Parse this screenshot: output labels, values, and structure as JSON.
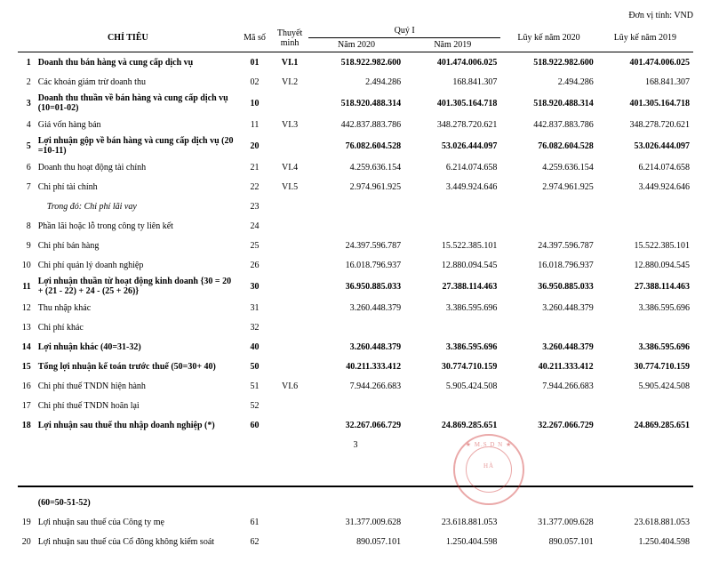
{
  "unit_text": "Đơn vị tính: VND",
  "page_number": "3",
  "headers": {
    "chi_tieu": "CHỈ TIÊU",
    "ma_so": "Mã số",
    "thuyet_minh": "Thuyết minh",
    "quy": "Quý I",
    "nam2020": "Năm 2020",
    "nam2019": "Năm 2019",
    "luyke2020": "Lũy kế năm 2020",
    "luyke2019": "Lũy kế năm 2019"
  },
  "stamp": {
    "line1": "★ M.S D N ★",
    "line2": "HÀ"
  },
  "rows": [
    {
      "idx": "1",
      "name": "Doanh thu bán hàng và cung cấp dịch vụ",
      "ms": "01",
      "tm": "VI.1",
      "q2020": "518.922.982.600",
      "q2019": "401.474.006.025",
      "l2020": "518.922.982.600",
      "l2019": "401.474.006.025",
      "bold": true
    },
    {
      "idx": "2",
      "name": "Các khoản giảm trừ doanh thu",
      "ms": "02",
      "tm": "VI.2",
      "q2020": "2.494.286",
      "q2019": "168.841.307",
      "l2020": "2.494.286",
      "l2019": "168.841.307",
      "bold": false
    },
    {
      "idx": "3",
      "name": "Doanh thu thuần về bán hàng và cung cấp dịch vụ (10=01-02)",
      "ms": "10",
      "tm": "",
      "q2020": "518.920.488.314",
      "q2019": "401.305.164.718",
      "l2020": "518.920.488.314",
      "l2019": "401.305.164.718",
      "bold": true
    },
    {
      "idx": "4",
      "name": "Giá vốn hàng bán",
      "ms": "11",
      "tm": "VI.3",
      "q2020": "442.837.883.786",
      "q2019": "348.278.720.621",
      "l2020": "442.837.883.786",
      "l2019": "348.278.720.621",
      "bold": false
    },
    {
      "idx": "5",
      "name": "Lợi nhuận gộp về bán hàng và cung cấp dịch vụ (20 =10-11)",
      "ms": "20",
      "tm": "",
      "q2020": "76.082.604.528",
      "q2019": "53.026.444.097",
      "l2020": "76.082.604.528",
      "l2019": "53.026.444.097",
      "bold": true
    },
    {
      "idx": "6",
      "name": "Doanh thu hoạt động tài chính",
      "ms": "21",
      "tm": "VI.4",
      "q2020": "4.259.636.154",
      "q2019": "6.214.074.658",
      "l2020": "4.259.636.154",
      "l2019": "6.214.074.658",
      "bold": false
    },
    {
      "idx": "7",
      "name": "Chi phí tài chính",
      "ms": "22",
      "tm": "VI.5",
      "q2020": "2.974.961.925",
      "q2019": "3.449.924.646",
      "l2020": "2.974.961.925",
      "l2019": "3.449.924.646",
      "bold": false
    },
    {
      "idx": "",
      "name": "Trong đó: Chi phí lãi vay",
      "ms": "23",
      "tm": "",
      "q2020": "",
      "q2019": "",
      "l2020": "",
      "l2019": "",
      "bold": false,
      "indent": true
    },
    {
      "idx": "8",
      "name": "Phần lãi hoặc lỗ trong công ty liên kết",
      "ms": "24",
      "tm": "",
      "q2020": "",
      "q2019": "",
      "l2020": "",
      "l2019": "",
      "bold": false
    },
    {
      "idx": "9",
      "name": "Chi phí bán hàng",
      "ms": "25",
      "tm": "",
      "q2020": "24.397.596.787",
      "q2019": "15.522.385.101",
      "l2020": "24.397.596.787",
      "l2019": "15.522.385.101",
      "bold": false
    },
    {
      "idx": "10",
      "name": "Chi phí quản lý doanh nghiệp",
      "ms": "26",
      "tm": "",
      "q2020": "16.018.796.937",
      "q2019": "12.880.094.545",
      "l2020": "16.018.796.937",
      "l2019": "12.880.094.545",
      "bold": false
    },
    {
      "idx": "11",
      "name": "Lợi nhuận thuần từ hoạt động kinh doanh {30 = 20 + (21 - 22) + 24 - (25 + 26)}",
      "ms": "30",
      "tm": "",
      "q2020": "36.950.885.033",
      "q2019": "27.388.114.463",
      "l2020": "36.950.885.033",
      "l2019": "27.388.114.463",
      "bold": true
    },
    {
      "idx": "12",
      "name": "Thu nhập khác",
      "ms": "31",
      "tm": "",
      "q2020": "3.260.448.379",
      "q2019": "3.386.595.696",
      "l2020": "3.260.448.379",
      "l2019": "3.386.595.696",
      "bold": false
    },
    {
      "idx": "13",
      "name": "Chi phí khác",
      "ms": "32",
      "tm": "",
      "q2020": "",
      "q2019": "",
      "l2020": "",
      "l2019": "",
      "bold": false
    },
    {
      "idx": "14",
      "name": "Lợi nhuận khác (40=31-32)",
      "ms": "40",
      "tm": "",
      "q2020": "3.260.448.379",
      "q2019": "3.386.595.696",
      "l2020": "3.260.448.379",
      "l2019": "3.386.595.696",
      "bold": true
    },
    {
      "idx": "15",
      "name": "Tổng lợi nhuận kế toán trước thuế (50=30+ 40)",
      "ms": "50",
      "tm": "",
      "q2020": "40.211.333.412",
      "q2019": "30.774.710.159",
      "l2020": "40.211.333.412",
      "l2019": "30.774.710.159",
      "bold": true
    },
    {
      "idx": "16",
      "name": "Chi phí thuế TNDN hiện hành",
      "ms": "51",
      "tm": "VI.6",
      "q2020": "7.944.266.683",
      "q2019": "5.905.424.508",
      "l2020": "7.944.266.683",
      "l2019": "5.905.424.508",
      "bold": false
    },
    {
      "idx": "17",
      "name": "Chi phí thuế TNDN hoãn lại",
      "ms": "52",
      "tm": "",
      "q2020": "",
      "q2019": "",
      "l2020": "",
      "l2019": "",
      "bold": false
    },
    {
      "idx": "18",
      "name": "Lợi nhuận sau thuế thu nhập doanh nghiệp (*)",
      "ms": "60",
      "tm": "",
      "q2020": "32.267.066.729",
      "q2019": "24.869.285.651",
      "l2020": "32.267.066.729",
      "l2019": "24.869.285.651",
      "bold": true
    }
  ],
  "formula_cont": "(60=50-51-52)",
  "rows2": [
    {
      "idx": "19",
      "name": "Lợi nhuận sau thuế của Công ty mẹ",
      "ms": "61",
      "tm": "",
      "q2020": "31.377.009.628",
      "q2019": "23.618.881.053",
      "l2020": "31.377.009.628",
      "l2019": "23.618.881.053",
      "bold": false
    },
    {
      "idx": "20",
      "name": "Lợi nhuận sau thuế của Cổ đông không kiểm soát",
      "ms": "62",
      "tm": "",
      "q2020": "890.057.101",
      "q2019": "1.250.404.598",
      "l2020": "890.057.101",
      "l2019": "1.250.404.598",
      "bold": false
    }
  ]
}
